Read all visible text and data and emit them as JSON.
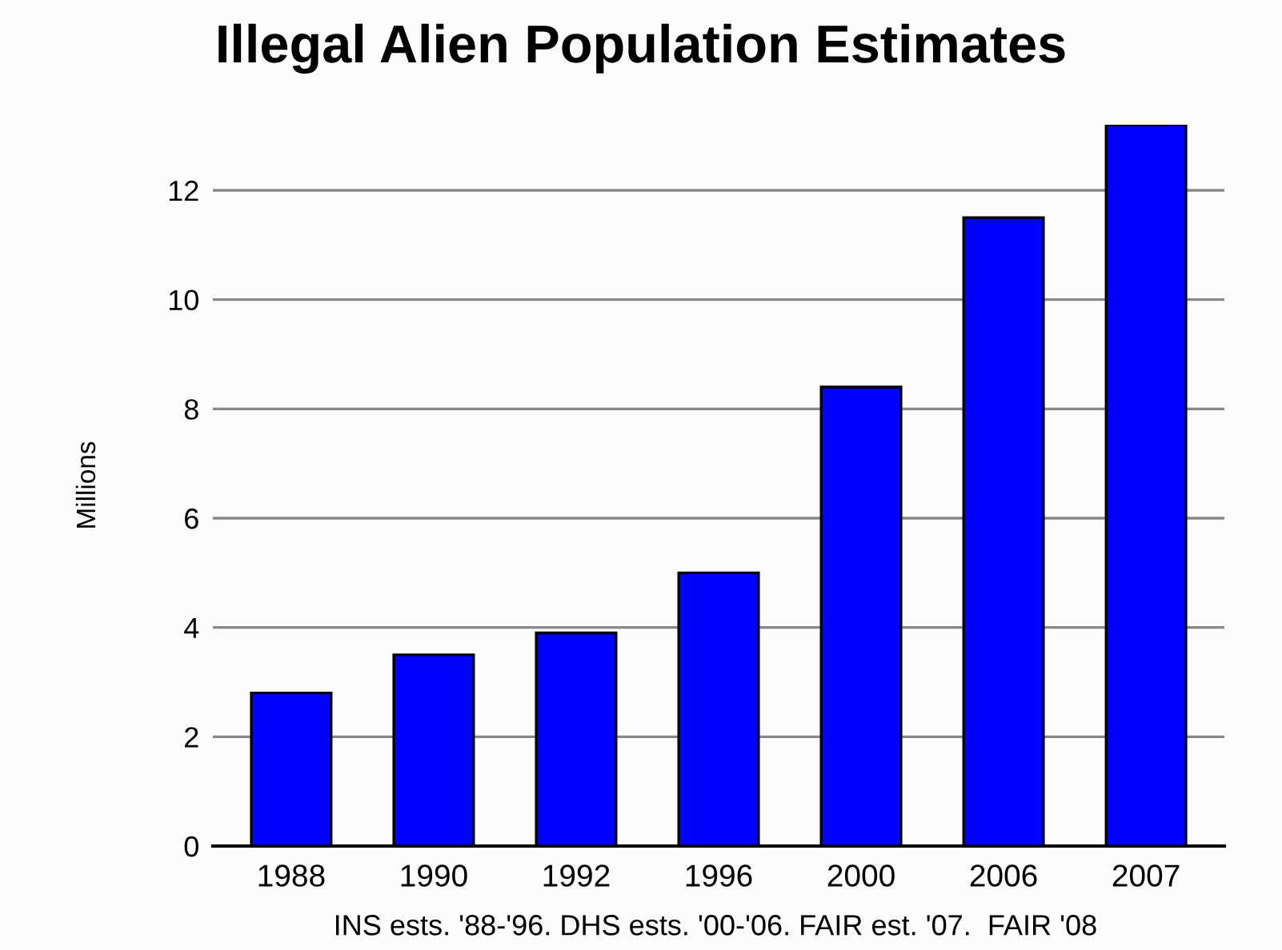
{
  "chart_data": {
    "type": "bar",
    "title": "Illegal Alien Population Estimates",
    "ylabel": "Millions",
    "categories": [
      "1988",
      "1990",
      "1992",
      "1996",
      "2000",
      "2006",
      "2007"
    ],
    "values": [
      2.8,
      3.5,
      3.9,
      5.0,
      8.4,
      11.5,
      13.2
    ],
    "color": "#0000ff",
    "ylim": [
      0,
      13.2
    ],
    "yticks": [
      0,
      2,
      4,
      6,
      8,
      10,
      12
    ],
    "grid": "y",
    "annotations": [
      "INS ests. '88-'96. DHS ests. '00-'06. FAIR est. '07.  FAIR '08"
    ]
  }
}
